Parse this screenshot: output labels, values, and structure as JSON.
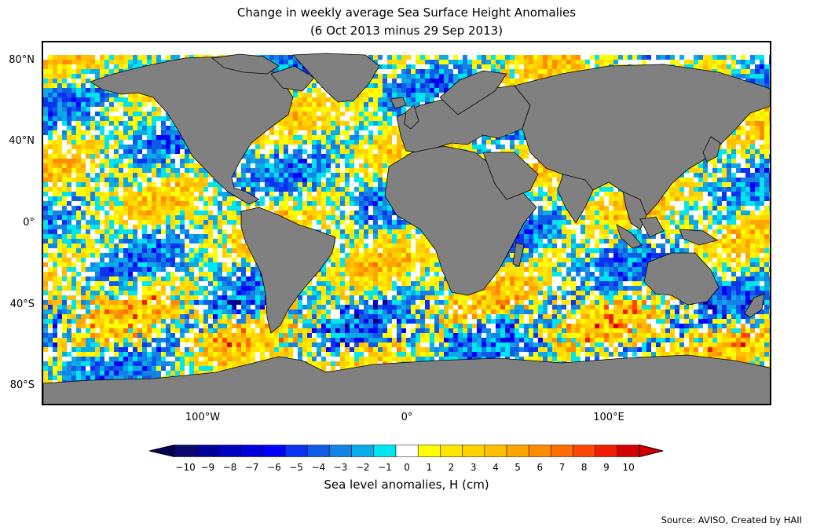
{
  "title_line1": "Change in weekly average Sea Surface Height Anomalies",
  "title_line2": "(6 Oct 2013 minus 29 Sep 2013)",
  "lat_labels": [
    "80°N",
    "40°N",
    "0°",
    "40°S",
    "80°S"
  ],
  "lon_labels": [
    "100°W",
    "0°",
    "100°E"
  ],
  "colorbar": {
    "label": "Sea level anomalies, H (cm)",
    "ticks": [
      "−10",
      "−9",
      "−8",
      "−7",
      "−6",
      "−5",
      "−4",
      "−3",
      "−2",
      "−1",
      "0",
      "1",
      "2",
      "3",
      "4",
      "5",
      "6",
      "7",
      "8",
      "9",
      "10"
    ],
    "colors": [
      "#0a0a6e",
      "#00009a",
      "#0000bf",
      "#0000dd",
      "#0000ff",
      "#0a32f0",
      "#0f5ae6",
      "#1482e6",
      "#0aaae6",
      "#00e6f0",
      "#ffffff",
      "#ffff00",
      "#ffe600",
      "#ffd200",
      "#ffbe00",
      "#ffa500",
      "#ff8c00",
      "#ff6e00",
      "#ff4600",
      "#f01e00",
      "#d20000"
    ],
    "extend_low_color": "#000050",
    "extend_high_color": "#d20000"
  },
  "land_color": "#808080",
  "source": "Source: AVISO, Created by HAII"
}
